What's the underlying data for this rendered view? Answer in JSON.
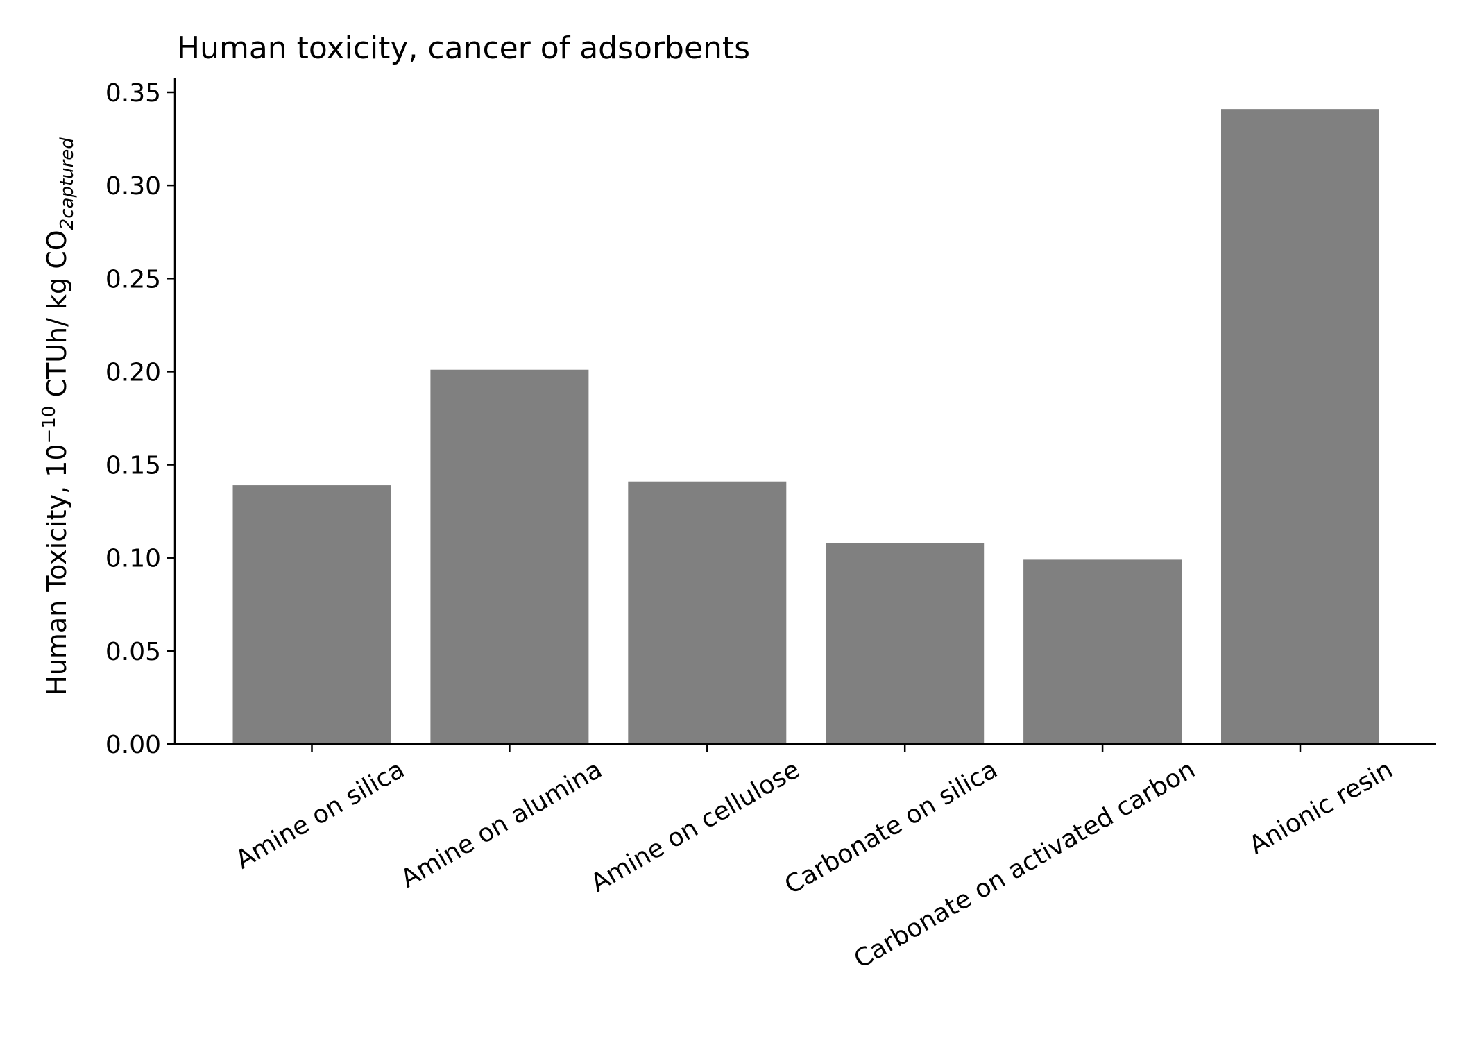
{
  "chart_data": {
    "type": "bar",
    "title": "Human toxicity, cancer of adsorbents",
    "ylabel": {
      "base": "Human Toxicity, 10",
      "superscript": "−10",
      "middle": " CTUh/ kg CO",
      "subscript": "2captured"
    },
    "xlabel": "",
    "categories": [
      "Amine on silica",
      "Amine on alumina",
      "Amine on cellulose",
      "Carbonate on silica",
      "Carbonate on activated carbon",
      "Anionic resin"
    ],
    "values": [
      0.139,
      0.201,
      0.141,
      0.108,
      0.099,
      0.341
    ],
    "ylim": [
      0,
      0.36
    ],
    "yticks": [
      0.0,
      0.05,
      0.1,
      0.15,
      0.2,
      0.25,
      0.3,
      0.35
    ],
    "ytick_labels": [
      "0.00",
      "0.05",
      "0.10",
      "0.15",
      "0.20",
      "0.25",
      "0.30",
      "0.35"
    ],
    "bar_color": "#808080",
    "grid": false,
    "legend": "none"
  }
}
